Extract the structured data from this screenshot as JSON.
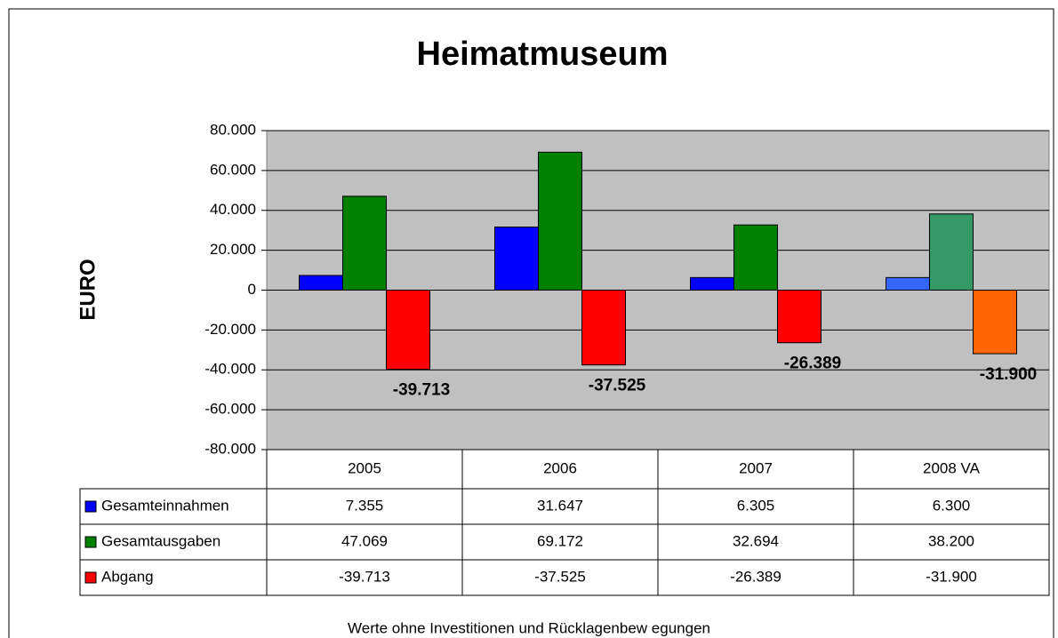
{
  "chart_data": {
    "type": "bar",
    "title": "Heimatmuseum",
    "ylabel": "EURO",
    "footnote": "Werte ohne Investitionen und Rücklagenbew egungen",
    "categories": [
      "2005",
      "2006",
      "2007",
      "2008 VA"
    ],
    "series": [
      {
        "name": "Gesamteinnahmen",
        "color": "#0000ff",
        "colors": [
          "#0000ff",
          "#0000ff",
          "#0000ff",
          "#3366ff"
        ],
        "values": [
          7355,
          31647,
          6305,
          6300
        ],
        "value_labels": [
          "7.355",
          "31.647",
          "6.305",
          "6.300"
        ]
      },
      {
        "name": "Gesamtausgaben",
        "color": "#008000",
        "colors": [
          "#008000",
          "#008000",
          "#008000",
          "#339966"
        ],
        "values": [
          47069,
          69172,
          32694,
          38200
        ],
        "value_labels": [
          "47.069",
          "69.172",
          "32.694",
          "38.200"
        ]
      },
      {
        "name": "Abgang",
        "color": "#ff0000",
        "colors": [
          "#ff0000",
          "#ff0000",
          "#ff0000",
          "#ff6600"
        ],
        "values": [
          -39713,
          -37525,
          -26389,
          -31900
        ],
        "value_labels": [
          "-39.713",
          "-37.525",
          "-26.389",
          "-31.900"
        ],
        "show_data_labels": true
      }
    ],
    "ylim": [
      -80000,
      80000
    ],
    "yticks": [
      {
        "value": -80000,
        "label": "-80.000"
      },
      {
        "value": -60000,
        "label": "-60.000"
      },
      {
        "value": -40000,
        "label": "-40.000"
      },
      {
        "value": -20000,
        "label": "-20.000"
      },
      0,
      {
        "value": 20000,
        "label": "20.000"
      },
      {
        "value": 40000,
        "label": "40.000"
      },
      {
        "value": 60000,
        "label": "60.000"
      },
      {
        "value": 80000,
        "label": "80.000"
      }
    ],
    "grid": true,
    "data_table": true
  }
}
